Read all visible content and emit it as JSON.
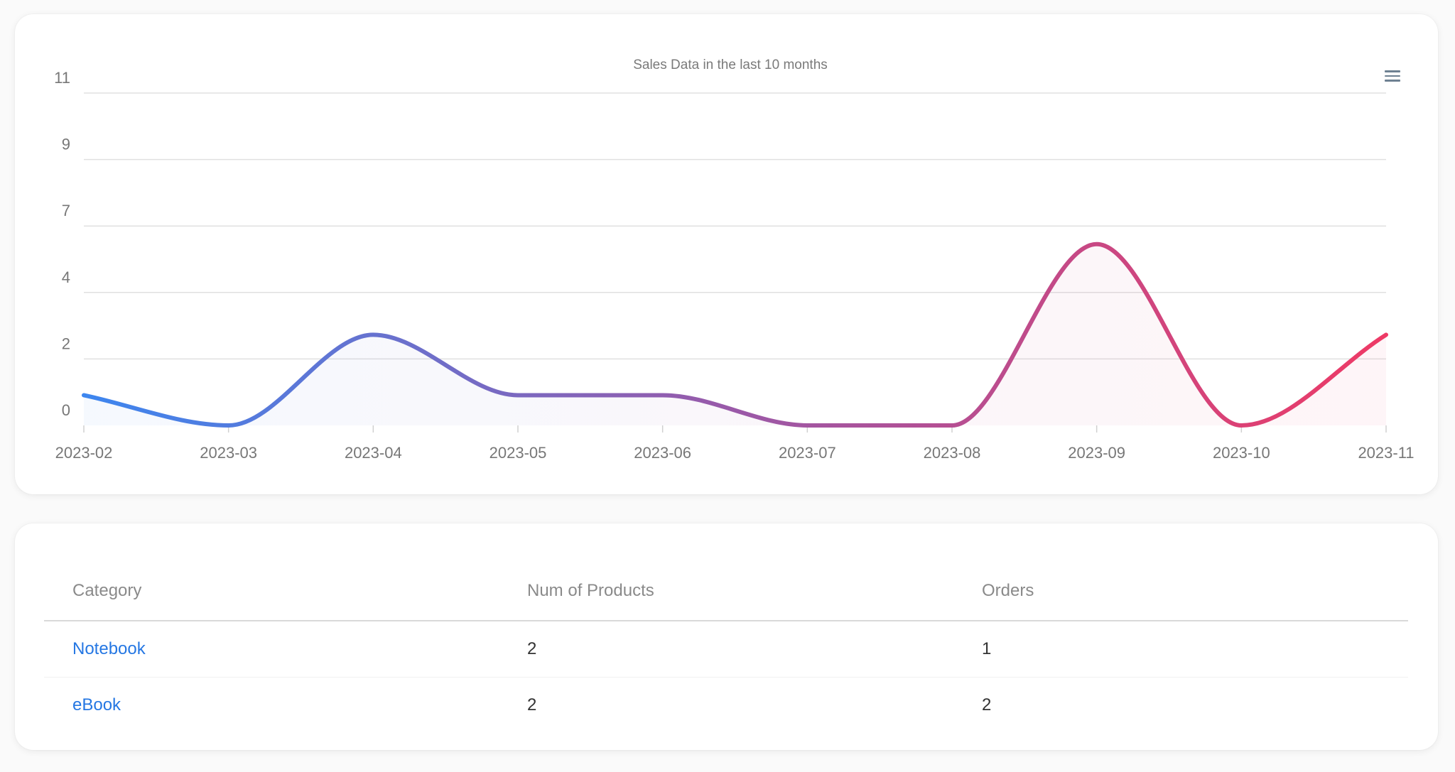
{
  "chart": {
    "title": "Sales Data in the last 10 months",
    "menu_icon": "hamburger-menu-icon"
  },
  "chart_data": {
    "type": "area",
    "title": "Sales Data in the last 10 months",
    "categories": [
      "2023-02",
      "2023-03",
      "2023-04",
      "2023-05",
      "2023-06",
      "2023-07",
      "2023-08",
      "2023-09",
      "2023-10",
      "2023-11"
    ],
    "series": [
      {
        "values": [
          1,
          0,
          3,
          1,
          1,
          0,
          0,
          6,
          0,
          3
        ]
      }
    ],
    "y_tick_labels": [
      "0",
      "2",
      "4",
      "7",
      "9",
      "11"
    ],
    "ylim": [
      0,
      11
    ],
    "grid": true,
    "line_gradient": [
      "#3d86ef",
      "#9a59a8",
      "#ee3a66"
    ]
  },
  "table": {
    "headers": [
      "Category",
      "Num of Products",
      "Orders"
    ],
    "rows": [
      [
        "Notebook",
        "2",
        "1"
      ],
      [
        "eBook",
        "2",
        "2"
      ]
    ]
  }
}
